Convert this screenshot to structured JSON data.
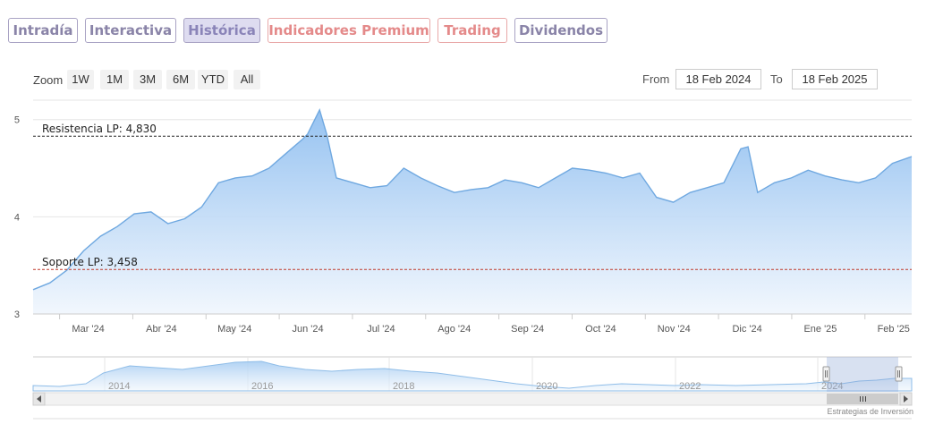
{
  "tabs": [
    {
      "label": "Intradía",
      "active": false,
      "premium": false
    },
    {
      "label": "Interactiva",
      "active": false,
      "premium": false
    },
    {
      "label": "Histórica",
      "active": true,
      "premium": false
    },
    {
      "label": "Indicadores Premium",
      "active": false,
      "premium": true
    },
    {
      "label": "Trading",
      "active": false,
      "premium": true
    },
    {
      "label": "Dividendos",
      "active": false,
      "premium": false
    }
  ],
  "zoom": {
    "label": "Zoom",
    "buttons": [
      "1W",
      "1M",
      "3M",
      "6M",
      "YTD",
      "All"
    ]
  },
  "range": {
    "from_label": "From",
    "from_value": "18 Feb 2024",
    "to_label": "To",
    "to_value": "18 Feb 2025"
  },
  "colors": {
    "line": "#6fa8e0",
    "fill_top": "#90bff0",
    "fill_bottom": "#f0f6fd",
    "resistance": "#222222",
    "support": "#c0392b"
  },
  "chart_data": {
    "type": "area",
    "title": "",
    "xlabel": "",
    "ylabel": "",
    "x_ticks": [
      "Mar '24",
      "Abr '24",
      "May '24",
      "Jun '24",
      "Jul '24",
      "Ago '24",
      "Sep '24",
      "Oct '24",
      "Nov '24",
      "Dic '24",
      "Ene '25",
      "Feb '25"
    ],
    "y_ticks": [
      "3",
      "4",
      "5"
    ],
    "ylim": [
      3,
      5.2
    ],
    "xlim": [
      "2024-02-19",
      "2025-02-18"
    ],
    "grid": true,
    "series": [
      {
        "x": [
          "2024-02-19",
          "2024-02-26",
          "2024-03-04",
          "2024-03-11",
          "2024-03-18",
          "2024-03-25",
          "2024-04-01",
          "2024-04-08",
          "2024-04-15",
          "2024-04-22",
          "2024-04-29",
          "2024-05-06",
          "2024-05-13",
          "2024-05-20",
          "2024-05-27",
          "2024-06-03",
          "2024-06-10",
          "2024-06-12",
          "2024-06-17",
          "2024-06-20",
          "2024-06-24",
          "2024-07-01",
          "2024-07-08",
          "2024-07-15",
          "2024-07-22",
          "2024-07-29",
          "2024-08-05",
          "2024-08-12",
          "2024-08-19",
          "2024-08-26",
          "2024-09-02",
          "2024-09-09",
          "2024-09-16",
          "2024-09-23",
          "2024-09-30",
          "2024-10-07",
          "2024-10-14",
          "2024-10-21",
          "2024-10-28",
          "2024-11-04",
          "2024-11-11",
          "2024-11-18",
          "2024-11-25",
          "2024-12-02",
          "2024-12-09",
          "2024-12-12",
          "2024-12-16",
          "2024-12-23",
          "2024-12-30",
          "2025-01-06",
          "2025-01-13",
          "2025-01-20",
          "2025-01-27",
          "2025-02-03",
          "2025-02-10",
          "2025-02-18"
        ],
        "y": [
          3.25,
          3.32,
          3.45,
          3.65,
          3.8,
          3.9,
          4.03,
          4.05,
          3.93,
          3.98,
          4.1,
          4.35,
          4.4,
          4.42,
          4.5,
          4.65,
          4.8,
          4.85,
          5.1,
          4.85,
          4.4,
          4.35,
          4.3,
          4.32,
          4.5,
          4.4,
          4.32,
          4.25,
          4.28,
          4.3,
          4.38,
          4.35,
          4.3,
          4.4,
          4.5,
          4.48,
          4.45,
          4.4,
          4.45,
          4.2,
          4.15,
          4.25,
          4.3,
          4.35,
          4.7,
          4.72,
          4.25,
          4.35,
          4.4,
          4.48,
          4.42,
          4.38,
          4.35,
          4.4,
          4.55,
          4.62
        ]
      }
    ],
    "annotations": [
      {
        "label": "Resistencia LP: 4,830",
        "y": 4.83
      },
      {
        "label": "Soporte LP: 3,458",
        "y": 3.458
      }
    ],
    "navigator": {
      "x_ticks": [
        "2014",
        "2016",
        "2018",
        "2020",
        "2022",
        "2024"
      ]
    }
  },
  "credit": "Estrategias de Inversión"
}
